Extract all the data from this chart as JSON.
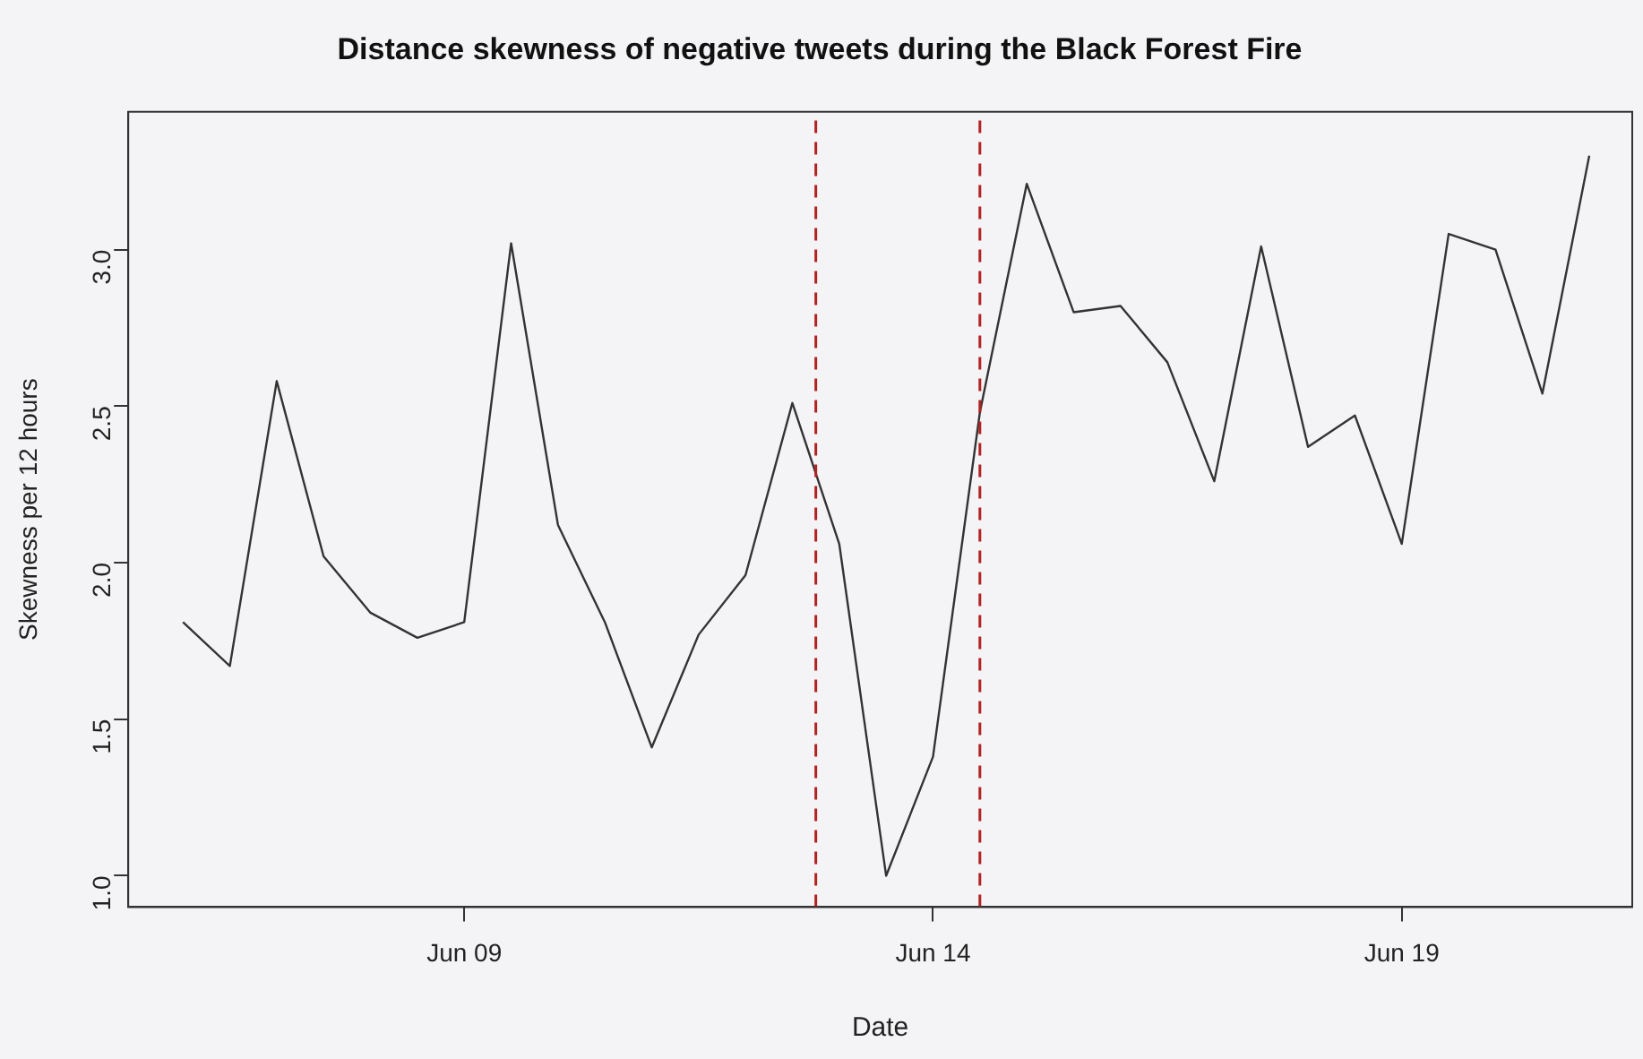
{
  "chart_data": {
    "type": "line",
    "title": "Distance skewness of negative tweets during the Black Forest Fire",
    "xlabel": "Date",
    "ylabel": "Skewness per 12 hours",
    "x": [
      "--06-06T00:00",
      "--06-06T12:00",
      "--06-07T00:00",
      "--06-07T12:00",
      "--06-08T00:00",
      "--06-08T12:00",
      "--06-09T00:00",
      "--06-09T12:00",
      "--06-10T00:00",
      "--06-10T12:00",
      "--06-11T00:00",
      "--06-11T12:00",
      "--06-12T00:00",
      "--06-12T12:00",
      "--06-13T00:00",
      "--06-13T12:00",
      "--06-14T00:00",
      "--06-14T12:00",
      "--06-15T00:00",
      "--06-15T12:00",
      "--06-16T00:00",
      "--06-16T12:00",
      "--06-17T00:00",
      "--06-17T12:00",
      "--06-18T00:00",
      "--06-18T12:00",
      "--06-19T00:00",
      "--06-19T12:00",
      "--06-20T00:00",
      "--06-20T12:00",
      "--06-21T00:00"
    ],
    "series": [
      {
        "color": "#333333",
        "values": [
          1.81,
          1.67,
          2.58,
          2.02,
          1.84,
          1.76,
          1.81,
          3.02,
          2.12,
          1.81,
          1.41,
          1.77,
          1.96,
          2.51,
          2.06,
          1.0,
          1.38,
          2.48,
          3.21,
          2.8,
          2.82,
          2.64,
          2.26,
          3.01,
          2.37,
          2.47,
          2.06,
          3.05,
          3.0,
          2.54,
          3.3
        ]
      }
    ],
    "xlim": [
      "--06-05T10:00",
      "--06-21T11:00"
    ],
    "xticks": [
      {
        "value": "--06-09",
        "label": "Jun 09"
      },
      {
        "value": "--06-14",
        "label": "Jun 14"
      },
      {
        "value": "--06-19",
        "label": "Jun 19"
      }
    ],
    "ylim": [
      0.9,
      3.44
    ],
    "yticks": [
      {
        "value": 1.0,
        "label": "1.0"
      },
      {
        "value": 1.5,
        "label": "1.5"
      },
      {
        "value": 2.0,
        "label": "2.0"
      },
      {
        "value": 2.5,
        "label": "2.5"
      },
      {
        "value": 3.0,
        "label": "3.0"
      }
    ],
    "ref_lines": [
      {
        "axis": "x",
        "value": "--06-12T18:00",
        "color": "#b22222",
        "line_style": "dashed"
      },
      {
        "axis": "x",
        "value": "--06-14T12:00",
        "color": "#b22222",
        "line_style": "dashed"
      }
    ],
    "grid": false,
    "legend": false,
    "marker": "none",
    "line_style": "solid"
  }
}
